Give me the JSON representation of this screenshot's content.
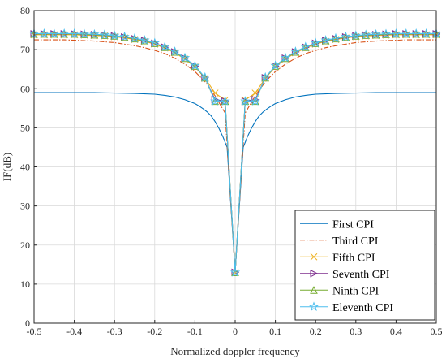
{
  "chart_data": {
    "type": "line",
    "xlabel": "Normalized doppler frequency",
    "ylabel": "IF(dB)",
    "xlim": [
      -0.5,
      0.5
    ],
    "ylim": [
      0,
      80
    ],
    "xticks": [
      -0.5,
      -0.4,
      -0.3,
      -0.2,
      -0.1,
      0,
      0.1,
      0.2,
      0.3,
      0.4,
      0.5
    ],
    "xtick_labels": [
      "-0.5",
      "-0.4",
      "-0.3",
      "-0.2",
      "-0.1",
      "0",
      "0.1",
      "0.2",
      "0.3",
      "0.4",
      "0.5"
    ],
    "yticks": [
      0,
      10,
      20,
      30,
      40,
      50,
      60,
      70,
      80
    ],
    "ytick_labels": [
      "0",
      "10",
      "20",
      "30",
      "40",
      "50",
      "60",
      "70",
      "80"
    ],
    "grid": true,
    "legend_position": "bottom-right",
    "x": [
      -0.5,
      -0.475,
      -0.45,
      -0.425,
      -0.4,
      -0.375,
      -0.35,
      -0.325,
      -0.3,
      -0.275,
      -0.25,
      -0.225,
      -0.2,
      -0.175,
      -0.15,
      -0.125,
      -0.1,
      -0.075,
      -0.05,
      -0.025,
      0,
      0.025,
      0.05,
      0.075,
      0.1,
      0.125,
      0.15,
      0.175,
      0.2,
      0.225,
      0.25,
      0.275,
      0.3,
      0.325,
      0.35,
      0.375,
      0.4,
      0.425,
      0.45,
      0.475,
      0.5
    ],
    "series": [
      {
        "name": "First CPI",
        "color": "#0072BD",
        "dash": "solid",
        "marker": "none",
        "x": [
          -0.5,
          -0.45,
          -0.4,
          -0.35,
          -0.3,
          -0.25,
          -0.2,
          -0.175,
          -0.15,
          -0.125,
          -0.1,
          -0.09,
          -0.08,
          -0.07,
          -0.06,
          -0.05,
          -0.04,
          -0.03,
          -0.02,
          0,
          0.02,
          0.03,
          0.04,
          0.05,
          0.06,
          0.07,
          0.08,
          0.09,
          0.1,
          0.125,
          0.15,
          0.175,
          0.2,
          0.25,
          0.3,
          0.35,
          0.4,
          0.45,
          0.5
        ],
        "values": [
          59.0,
          59.0,
          59.0,
          59.0,
          58.9,
          58.8,
          58.6,
          58.3,
          57.9,
          57.2,
          56.2,
          55.6,
          54.9,
          54.1,
          53.1,
          51.6,
          49.8,
          47.6,
          45.0,
          13.2,
          45.0,
          47.6,
          49.8,
          51.6,
          53.1,
          54.1,
          54.9,
          55.6,
          56.2,
          57.2,
          57.9,
          58.3,
          58.6,
          58.8,
          58.9,
          59.0,
          59.0,
          59.0,
          59.0
        ]
      },
      {
        "name": "Third CPI",
        "color": "#D95319",
        "dash": "dashdot",
        "marker": "none",
        "values": [
          72.5,
          72.5,
          72.5,
          72.5,
          72.4,
          72.3,
          72.2,
          72.0,
          71.8,
          71.4,
          71.0,
          70.5,
          69.8,
          69.0,
          67.8,
          66.3,
          64.4,
          61.8,
          58.2,
          53.8,
          13.0,
          53.8,
          58.2,
          61.8,
          64.4,
          66.3,
          67.8,
          69.0,
          69.8,
          70.5,
          71.0,
          71.4,
          71.8,
          72.0,
          72.2,
          72.3,
          72.4,
          72.5,
          72.5,
          72.5,
          72.5
        ]
      },
      {
        "name": "Fifth CPI",
        "color": "#EDB120",
        "dash": "solid",
        "marker": "x",
        "values": [
          73.8,
          73.8,
          73.8,
          73.8,
          73.8,
          73.7,
          73.6,
          73.5,
          73.3,
          73.0,
          72.6,
          72.1,
          71.4,
          70.4,
          69.2,
          67.6,
          65.6,
          62.7,
          58.9,
          57.1,
          13.0,
          57.1,
          58.9,
          62.7,
          65.6,
          67.6,
          69.2,
          70.4,
          71.4,
          72.1,
          72.6,
          73.0,
          73.3,
          73.5,
          73.6,
          73.7,
          73.8,
          73.8,
          73.8,
          73.8,
          73.8
        ]
      },
      {
        "name": "Seventh CPI",
        "color": "#7E2F8E",
        "dash": "solid",
        "marker": "triangle-right",
        "values": [
          74.0,
          74.0,
          74.0,
          74.0,
          74.0,
          73.9,
          73.8,
          73.7,
          73.5,
          73.2,
          72.8,
          72.3,
          71.6,
          70.6,
          69.4,
          67.8,
          65.8,
          62.8,
          57.2,
          56.8,
          13.0,
          56.8,
          57.2,
          62.8,
          65.8,
          67.8,
          69.4,
          70.6,
          71.6,
          72.3,
          72.8,
          73.2,
          73.5,
          73.7,
          73.8,
          73.9,
          74.0,
          74.0,
          74.0,
          74.0,
          74.0
        ]
      },
      {
        "name": "Ninth CPI",
        "color": "#77AC30",
        "dash": "solid",
        "marker": "triangle-up",
        "values": [
          74.0,
          74.0,
          74.0,
          74.0,
          74.0,
          73.9,
          73.8,
          73.7,
          73.5,
          73.2,
          72.8,
          72.3,
          71.6,
          70.6,
          69.4,
          67.8,
          65.8,
          62.8,
          56.8,
          56.8,
          13.0,
          56.8,
          56.8,
          62.8,
          65.8,
          67.8,
          69.4,
          70.6,
          71.6,
          72.3,
          72.8,
          73.2,
          73.5,
          73.7,
          73.8,
          73.9,
          74.0,
          74.0,
          74.0,
          74.0,
          74.0
        ]
      },
      {
        "name": "Eleventh CPI",
        "color": "#4DBEEE",
        "dash": "solid",
        "marker": "star",
        "values": [
          74.1,
          74.1,
          74.1,
          74.1,
          74.1,
          74.0,
          73.9,
          73.8,
          73.6,
          73.3,
          72.9,
          72.4,
          71.7,
          70.7,
          69.5,
          67.9,
          65.9,
          62.9,
          56.8,
          56.8,
          13.0,
          56.8,
          56.8,
          62.9,
          65.9,
          67.9,
          69.5,
          70.7,
          71.7,
          72.4,
          72.9,
          73.3,
          73.6,
          73.8,
          73.9,
          74.0,
          74.1,
          74.1,
          74.1,
          74.1,
          74.1
        ]
      }
    ]
  }
}
